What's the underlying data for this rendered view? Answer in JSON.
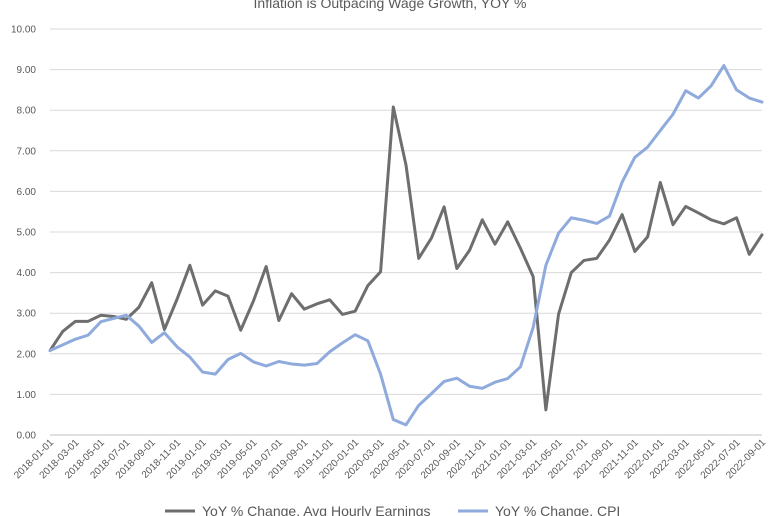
{
  "chart_data": {
    "type": "line",
    "title": "Inflation is Outpacing Wage Growth, YOY %",
    "xlabel": "",
    "ylabel": "",
    "ylim": [
      0,
      10
    ],
    "yticks": [
      "0.00",
      "1.00",
      "2.00",
      "3.00",
      "4.00",
      "5.00",
      "6.00",
      "7.00",
      "8.00",
      "9.00",
      "10.00"
    ],
    "grid": true,
    "legend_position": "bottom",
    "x": [
      "2018-01-01",
      "2018-02-01",
      "2018-03-01",
      "2018-04-01",
      "2018-05-01",
      "2018-06-01",
      "2018-07-01",
      "2018-08-01",
      "2018-09-01",
      "2018-10-01",
      "2018-11-01",
      "2018-12-01",
      "2019-01-01",
      "2019-02-01",
      "2019-03-01",
      "2019-04-01",
      "2019-05-01",
      "2019-06-01",
      "2019-07-01",
      "2019-08-01",
      "2019-09-01",
      "2019-10-01",
      "2019-11-01",
      "2019-12-01",
      "2020-01-01",
      "2020-02-01",
      "2020-03-01",
      "2020-04-01",
      "2020-05-01",
      "2020-06-01",
      "2020-07-01",
      "2020-08-01",
      "2020-09-01",
      "2020-10-01",
      "2020-11-01",
      "2020-12-01",
      "2021-01-01",
      "2021-02-01",
      "2021-03-01",
      "2021-04-01",
      "2021-05-01",
      "2021-06-01",
      "2021-07-01",
      "2021-08-01",
      "2021-09-01",
      "2021-10-01",
      "2021-11-01",
      "2021-12-01",
      "2022-01-01",
      "2022-02-01",
      "2022-03-01",
      "2022-04-01",
      "2022-05-01",
      "2022-06-01",
      "2022-07-01",
      "2022-08-01",
      "2022-09-01"
    ],
    "xtick_labels": [
      "2018-01-01",
      "2018-03-01",
      "2018-05-01",
      "2018-07-01",
      "2018-09-01",
      "2018-11-01",
      "2019-01-01",
      "2019-03-01",
      "2019-05-01",
      "2019-07-01",
      "2019-09-01",
      "2019-11-01",
      "2020-01-01",
      "2020-03-01",
      "2020-05-01",
      "2020-07-01",
      "2020-09-01",
      "2020-11-01",
      "2021-01-01",
      "2021-03-01",
      "2021-05-01",
      "2021-07-01",
      "2021-09-01",
      "2021-11-01",
      "2022-01-01",
      "2022-03-01",
      "2022-05-01",
      "2022-07-01",
      "2022-09-01"
    ],
    "series": [
      {
        "name": "YoY % Change, Avg Hourly Earnings",
        "color": "#6e6e6e",
        "values": [
          2.08,
          2.55,
          2.8,
          2.8,
          2.95,
          2.92,
          2.85,
          3.15,
          3.75,
          2.6,
          3.35,
          4.18,
          3.2,
          3.55,
          3.42,
          2.58,
          3.3,
          4.15,
          2.82,
          3.48,
          3.1,
          3.23,
          3.33,
          2.97,
          3.05,
          3.68,
          4.02,
          8.08,
          6.65,
          4.35,
          4.85,
          5.62,
          4.1,
          4.55,
          5.3,
          4.7,
          5.25,
          4.6,
          3.9,
          0.62,
          2.98,
          4.0,
          4.3,
          4.35,
          4.8,
          5.43,
          4.52,
          4.88,
          6.22,
          5.18,
          5.63,
          5.47,
          5.3,
          5.2,
          5.35,
          4.45,
          4.93
        ]
      },
      {
        "name": "YoY % Change, CPI",
        "color": "#8faadc",
        "values": [
          2.08,
          2.22,
          2.36,
          2.46,
          2.79,
          2.87,
          2.95,
          2.68,
          2.28,
          2.52,
          2.17,
          1.92,
          1.55,
          1.5,
          1.86,
          2.01,
          1.8,
          1.7,
          1.81,
          1.75,
          1.72,
          1.76,
          2.05,
          2.27,
          2.47,
          2.32,
          1.5,
          0.38,
          0.25,
          0.73,
          1.02,
          1.32,
          1.4,
          1.2,
          1.15,
          1.3,
          1.39,
          1.68,
          2.65,
          4.18,
          4.97,
          5.35,
          5.29,
          5.21,
          5.39,
          6.23,
          6.84,
          7.09,
          7.5,
          7.9,
          8.48,
          8.3,
          8.6,
          9.1,
          8.5,
          8.3,
          8.2
        ]
      }
    ]
  }
}
